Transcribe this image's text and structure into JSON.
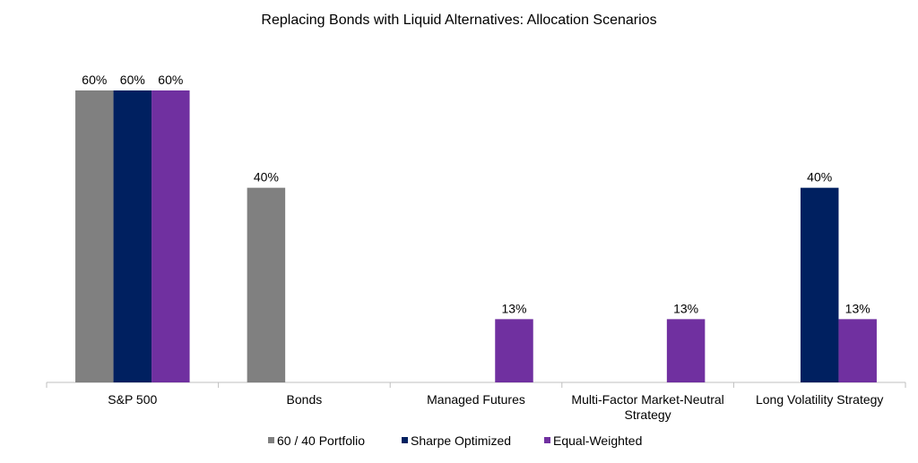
{
  "chart_data": {
    "type": "bar",
    "title": "Replacing Bonds with Liquid Alternatives: Allocation Scenarios",
    "categories": [
      "S&P 500",
      "Bonds",
      "Managed Futures",
      "Multi-Factor Market-Neutral Strategy",
      "Long Volatility Strategy"
    ],
    "category_lines": [
      [
        "S&P 500"
      ],
      [
        "Bonds"
      ],
      [
        "Managed Futures"
      ],
      [
        "Multi-Factor Market-Neutral",
        "Strategy"
      ],
      [
        "Long Volatility Strategy"
      ]
    ],
    "series": [
      {
        "name": "60 / 40 Portfolio",
        "color": "#808080",
        "values": [
          60,
          40,
          0,
          0,
          0
        ]
      },
      {
        "name": "Sharpe Optimized",
        "color": "#002060",
        "values": [
          60,
          0,
          0,
          0,
          40
        ]
      },
      {
        "name": "Equal-Weighted",
        "color": "#7030A0",
        "values": [
          60,
          0,
          13,
          13,
          13
        ]
      }
    ],
    "data_labels": [
      [
        "60%",
        "40%",
        "",
        "",
        ""
      ],
      [
        "60%",
        "",
        "",
        "",
        "40%"
      ],
      [
        "60%",
        "",
        "13%",
        "13%",
        "13%"
      ]
    ],
    "ylim": [
      0,
      60
    ],
    "y_axis_visible": false,
    "grid": false,
    "legend": "bottom"
  }
}
